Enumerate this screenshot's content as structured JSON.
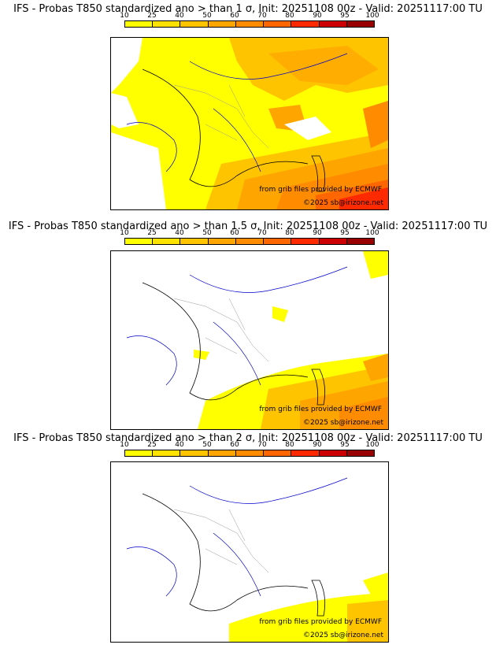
{
  "colorbar": {
    "ticks": [
      "10",
      "25",
      "40",
      "50",
      "60",
      "70",
      "80",
      "90",
      "95",
      "100"
    ],
    "colors": [
      "#ffff00",
      "#ffe300",
      "#ffc400",
      "#ffa500",
      "#ff8c00",
      "#ff6600",
      "#ff2a00",
      "#cc0000",
      "#990000",
      "#660000"
    ]
  },
  "panels": [
    {
      "title": "IFS - Probas T850  standardized ano > than 1 σ, Init: 20251108 00z - Valid: 20251117:00 TU"
    },
    {
      "title": "IFS - Probas T850  standardized ano > than 1.5 σ, Init: 20251108 00z - Valid: 20251117:00 TU"
    },
    {
      "title": "IFS - Probas T850  standardized ano > than 2 σ, Init: 20251108 00z - Valid: 20251117:00 TU"
    }
  ],
  "credits": {
    "source": "from grib files provided by ECMWF",
    "copyright": "©2025 sb@irizone.net"
  },
  "icons": {
    "map": "europe-map-icon"
  }
}
